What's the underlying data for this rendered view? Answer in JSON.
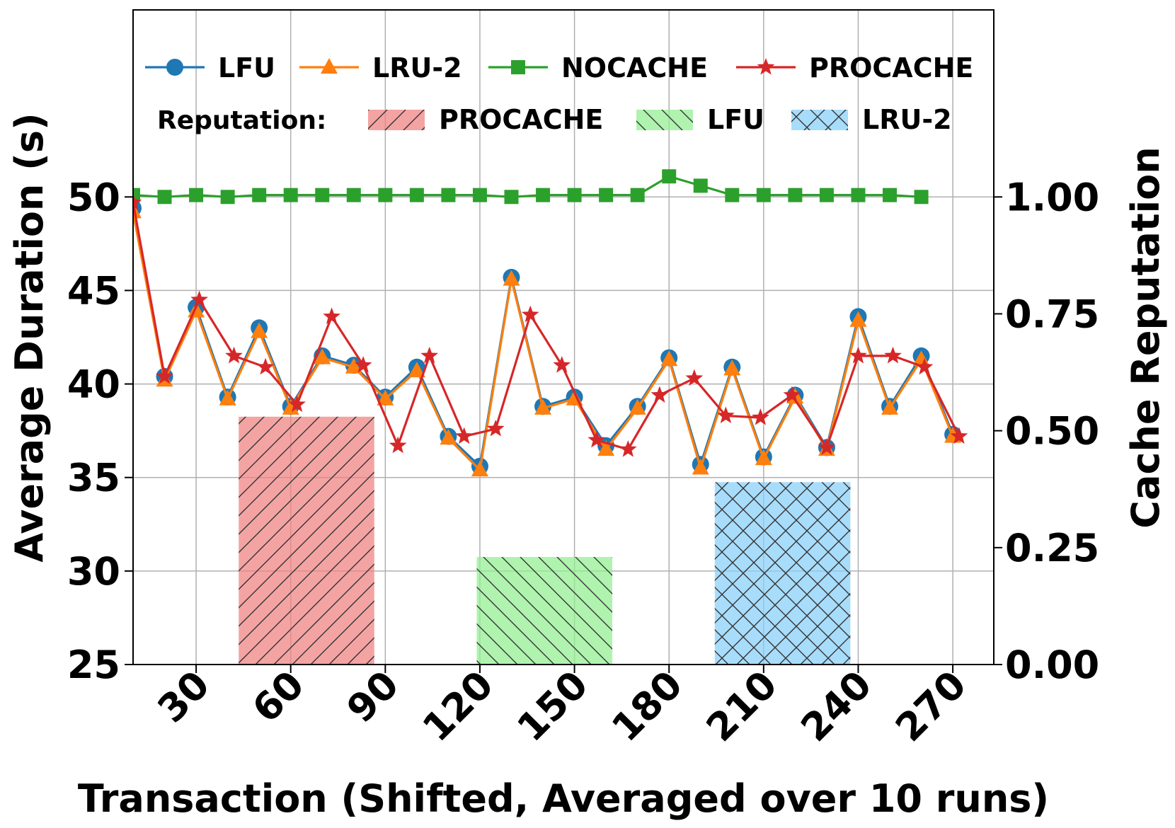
{
  "chart_data": {
    "type": "line",
    "xlabel": "Transaction (Shifted, Averaged over 10 runs)",
    "ylabel": "Average Duration (s)",
    "y2label": "Cache Reputation",
    "xlim": [
      10,
      283
    ],
    "ylim": [
      25,
      60
    ],
    "y2lim": [
      0,
      1.4
    ],
    "xticks": [
      30,
      60,
      90,
      120,
      150,
      180,
      210,
      240,
      270
    ],
    "yticks": [
      25,
      30,
      35,
      40,
      45,
      50
    ],
    "y2ticks": [
      "0.00",
      "0.25",
      "0.50",
      "0.75",
      "1.00"
    ],
    "grid": true,
    "x": [
      10,
      20,
      30,
      40,
      50,
      60,
      70,
      80,
      90,
      100,
      110,
      120,
      130,
      140,
      150,
      160,
      170,
      180,
      190,
      200,
      210,
      220,
      230,
      240,
      250,
      260,
      270
    ],
    "series": [
      {
        "name": "LFU",
        "color": "#1f77b4",
        "marker": "circle",
        "values": [
          49.4,
          40.4,
          44.1,
          39.3,
          43.0,
          38.8,
          41.5,
          41.0,
          39.3,
          40.9,
          37.2,
          35.6,
          45.7,
          38.8,
          39.3,
          36.7,
          38.8,
          41.4,
          35.7,
          40.9,
          36.1,
          39.4,
          36.6,
          43.6,
          38.8,
          41.5,
          37.3
        ]
      },
      {
        "name": "LRU-2",
        "color": "#ff7f0e",
        "marker": "triangle",
        "values": [
          49.2,
          40.2,
          43.9,
          39.2,
          42.8,
          38.7,
          41.4,
          40.9,
          39.2,
          40.7,
          37.1,
          35.4,
          45.6,
          38.7,
          39.2,
          36.5,
          38.7,
          41.3,
          35.5,
          40.8,
          36.0,
          39.3,
          36.5,
          43.4,
          38.7,
          41.3,
          37.2
        ]
      },
      {
        "name": "NOCACHE",
        "color": "#2ca02c",
        "marker": "square",
        "x": [
          10,
          20,
          30,
          40,
          50,
          60,
          70,
          80,
          90,
          100,
          110,
          120,
          130,
          140,
          150,
          160,
          170,
          180,
          190,
          200,
          210,
          220,
          230,
          240,
          250,
          260
        ],
        "values": [
          50.1,
          50.0,
          50.1,
          50.0,
          50.1,
          50.1,
          50.1,
          50.1,
          50.1,
          50.1,
          50.1,
          50.1,
          50.0,
          50.1,
          50.1,
          50.1,
          50.1,
          51.1,
          50.6,
          50.1,
          50.1,
          50.1,
          50.1,
          50.1,
          50.1,
          50.0
        ]
      },
      {
        "name": "PROCACHE",
        "color": "#d62728",
        "marker": "star",
        "x": [
          10,
          20,
          31,
          42,
          52,
          62,
          73,
          83,
          94,
          104,
          115,
          125,
          136,
          146,
          157,
          167,
          177,
          188,
          198,
          209,
          219,
          230,
          240,
          251,
          261,
          272
        ],
        "values": [
          49.7,
          40.4,
          44.5,
          41.5,
          40.9,
          38.9,
          43.6,
          41.0,
          36.7,
          41.5,
          37.2,
          37.6,
          43.7,
          41.0,
          37.0,
          36.5,
          39.4,
          40.3,
          38.3,
          38.2,
          39.4,
          36.6,
          41.5,
          41.5,
          40.9,
          37.2
        ]
      }
    ],
    "bars": {
      "axis": "secondary",
      "label": "Reputation:",
      "items": [
        {
          "name": "PROCACHE",
          "x_start": 43.5,
          "x_end": 86.5,
          "value": 0.53,
          "color": "#f08080",
          "hatch": "/"
        },
        {
          "name": "LFU",
          "x_start": 119,
          "x_end": 162,
          "value": 0.23,
          "color": "#90ee90",
          "hatch": "\\"
        },
        {
          "name": "LRU-2",
          "x_start": 194.5,
          "x_end": 237.5,
          "value": 0.39,
          "color": "#87cefa",
          "hatch": "x"
        }
      ]
    },
    "legend": {
      "lines": [
        "LFU",
        "LRU-2",
        "NOCACHE",
        "PROCACHE"
      ],
      "reputation_label": "Reputation:",
      "bars": [
        "PROCACHE",
        "LFU",
        "LRU-2"
      ],
      "location": "top"
    }
  }
}
